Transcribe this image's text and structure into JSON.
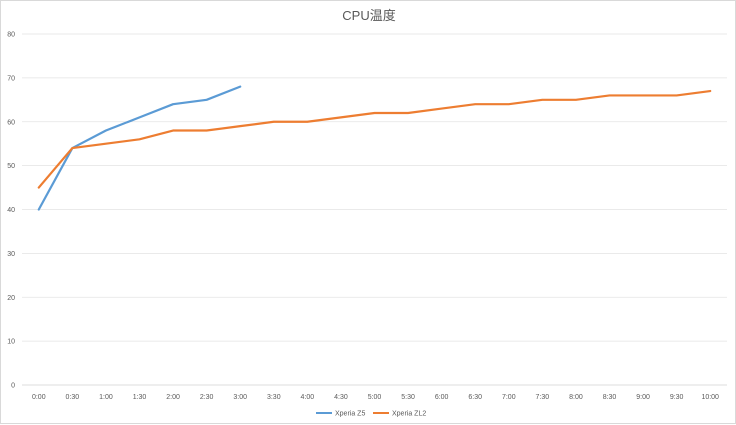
{
  "chart_data": {
    "type": "line",
    "title": "CPU温度",
    "xlabel": "",
    "ylabel": "",
    "ylim": [
      0,
      80
    ],
    "yticks": [
      0,
      10,
      20,
      30,
      40,
      50,
      60,
      70,
      80
    ],
    "grid": true,
    "legend_position": "bottom",
    "categories": [
      "0:00",
      "0:30",
      "1:00",
      "1:30",
      "2:00",
      "2:30",
      "3:00",
      "3:30",
      "4:00",
      "4:30",
      "5:00",
      "5:30",
      "6:00",
      "6:30",
      "7:00",
      "7:30",
      "8:00",
      "8:30",
      "9:00",
      "9:30",
      "10:00"
    ],
    "series": [
      {
        "name": "Xperia Z5",
        "color": "#5b9bd5",
        "values": [
          40,
          54,
          58,
          61,
          64,
          65,
          68,
          null,
          null,
          null,
          null,
          null,
          null,
          null,
          null,
          null,
          null,
          null,
          null,
          null,
          null
        ]
      },
      {
        "name": "Xperia ZL2",
        "color": "#ed7d31",
        "values": [
          45,
          54,
          55,
          56,
          58,
          58,
          59,
          60,
          60,
          61,
          62,
          62,
          63,
          64,
          64,
          65,
          65,
          66,
          66,
          66,
          67
        ]
      }
    ]
  }
}
